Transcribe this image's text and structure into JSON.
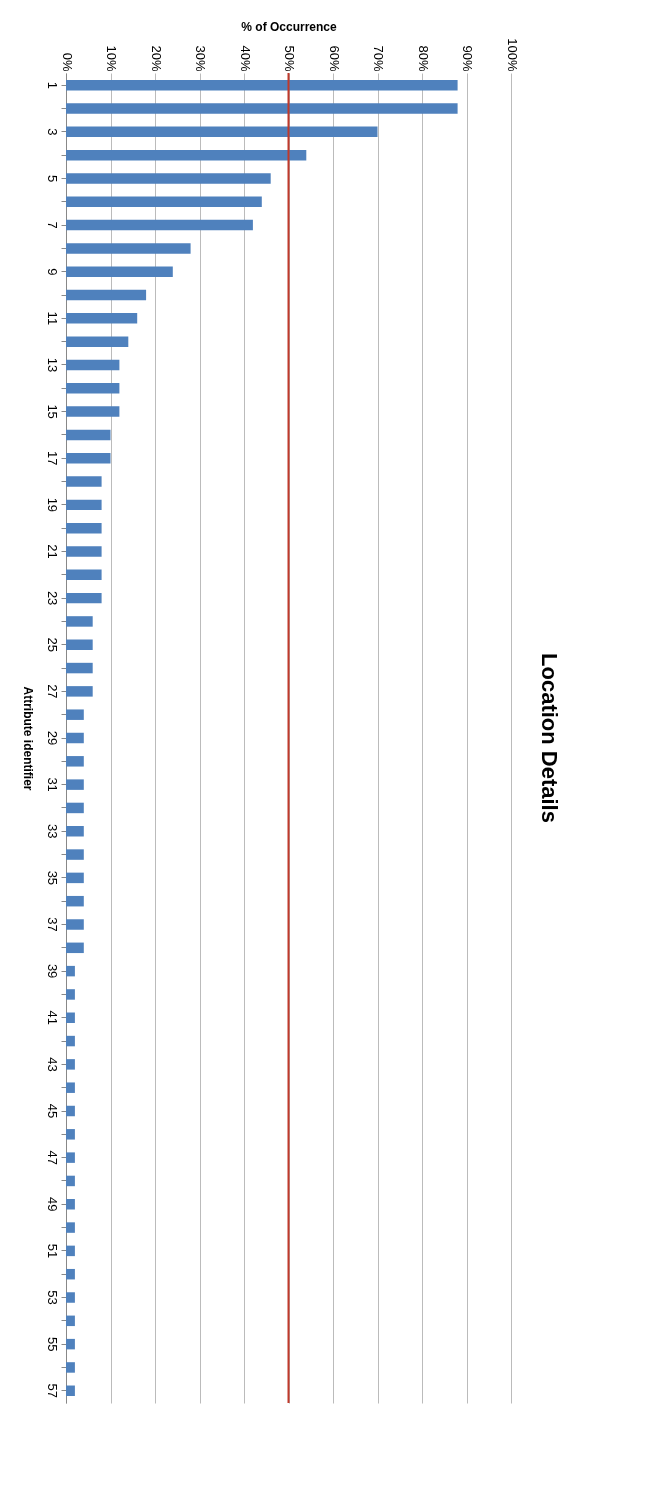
{
  "chart_data": {
    "type": "bar",
    "orientation": "horizontal",
    "title": "Location Details",
    "xlabel": "% of Occurrence",
    "ylabel": "Attribute identifier",
    "categories": [
      "1",
      null,
      "3",
      null,
      "5",
      null,
      "7",
      null,
      "9",
      null,
      "11",
      null,
      "13",
      null,
      "15",
      null,
      "17",
      null,
      "19",
      null,
      "21",
      null,
      "23",
      null,
      "25",
      null,
      "27",
      null,
      "29",
      null,
      "31",
      null,
      "33",
      null,
      "35",
      null,
      "37",
      null,
      "39",
      null,
      "41",
      null,
      "43",
      null,
      "45",
      null,
      "47",
      null,
      "49",
      null,
      "51",
      null,
      "53",
      null,
      "55",
      null,
      "57"
    ],
    "values": [
      88,
      88,
      70,
      54,
      46,
      44,
      42,
      28,
      24,
      18,
      16,
      14,
      12,
      12,
      12,
      10,
      10,
      8,
      8,
      8,
      8,
      8,
      8,
      6,
      6,
      6,
      6,
      4,
      4,
      4,
      4,
      4,
      4,
      4,
      4,
      4,
      4,
      4,
      2,
      2,
      2,
      2,
      2,
      2,
      2,
      2,
      2,
      2,
      2,
      2,
      2,
      2,
      2,
      2,
      2,
      2,
      2
    ],
    "color": "#4f81bd",
    "xlim": [
      0,
      100
    ],
    "xticks": [
      {
        "value": 0,
        "label": "0%"
      },
      {
        "value": 10,
        "label": "10%"
      },
      {
        "value": 20,
        "label": "20%"
      },
      {
        "value": 30,
        "label": "30%"
      },
      {
        "value": 40,
        "label": "40%"
      },
      {
        "value": 50,
        "label": "50%"
      },
      {
        "value": 60,
        "label": "60%"
      },
      {
        "value": 70,
        "label": "70%"
      },
      {
        "value": 80,
        "label": "80%"
      },
      {
        "value": 90,
        "label": "90%"
      },
      {
        "value": 100,
        "label": "100%"
      }
    ],
    "grid": "x",
    "ref_lines": [
      {
        "axis": "x",
        "value": 50,
        "color": "#c0392b"
      }
    ]
  }
}
